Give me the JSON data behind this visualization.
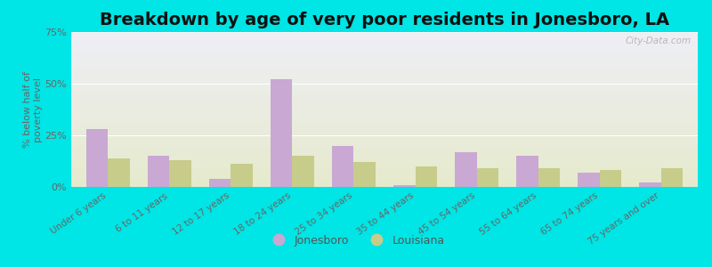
{
  "title": "Breakdown by age of very poor residents in Jonesboro, LA",
  "ylabel": "% below half of\npoverty level",
  "categories": [
    "Under 6 years",
    "6 to 11 years",
    "12 to 17 years",
    "18 to 24 years",
    "25 to 34 years",
    "35 to 44 years",
    "45 to 54 years",
    "55 to 64 years",
    "65 to 74 years",
    "75 years and over"
  ],
  "jonesboro": [
    28,
    15,
    4,
    52,
    20,
    1,
    17,
    15,
    7,
    2
  ],
  "louisiana": [
    14,
    13,
    11,
    15,
    12,
    10,
    9,
    9,
    8,
    9
  ],
  "jonesboro_color": "#c9a8d4",
  "louisiana_color": "#c8cc8a",
  "background_outer": "#00e5e5",
  "plot_bg_top": "#eeeef5",
  "plot_bg_bottom": "#e5eacc",
  "ylim": [
    0,
    75
  ],
  "yticks": [
    0,
    25,
    50,
    75
  ],
  "ytick_labels": [
    "0%",
    "25%",
    "50%",
    "75%"
  ],
  "bar_width": 0.35,
  "title_fontsize": 14,
  "watermark": "City-Data.com"
}
